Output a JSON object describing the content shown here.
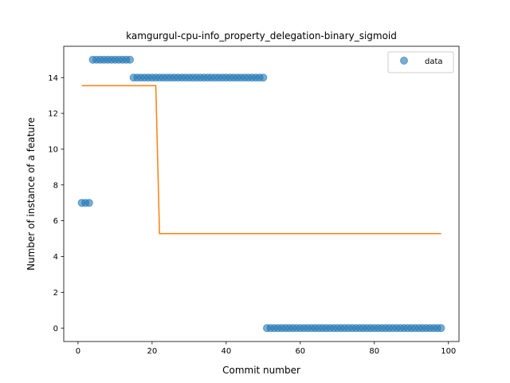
{
  "chart_data": {
    "type": "scatter",
    "title": "kamgurgul-cpu-info_property_delegation-binary_sigmoid",
    "xlabel": "Commit number",
    "ylabel": "Number of instance of a feature",
    "xlim": [
      -3.85,
      102.85
    ],
    "ylim": [
      -0.75,
      15.75
    ],
    "xticks": [
      0,
      20,
      40,
      60,
      80,
      100
    ],
    "yticks": [
      0,
      2,
      4,
      6,
      8,
      10,
      12,
      14
    ],
    "grid": false,
    "legend": {
      "position": "top-right",
      "entries": [
        "data"
      ]
    },
    "colors": {
      "data": "#1f77b4",
      "fit": "#ff7f0e"
    },
    "series": [
      {
        "name": "data",
        "kind": "scatter",
        "x": [
          1,
          2,
          3,
          4,
          5,
          6,
          7,
          8,
          9,
          10,
          11,
          12,
          13,
          14,
          15,
          16,
          17,
          18,
          19,
          20,
          21,
          22,
          23,
          24,
          25,
          26,
          27,
          28,
          29,
          30,
          31,
          32,
          33,
          34,
          35,
          36,
          37,
          38,
          39,
          40,
          41,
          42,
          43,
          44,
          45,
          46,
          47,
          48,
          49,
          50,
          51,
          52,
          53,
          54,
          55,
          56,
          57,
          58,
          59,
          60,
          61,
          62,
          63,
          64,
          65,
          66,
          67,
          68,
          69,
          70,
          71,
          72,
          73,
          74,
          75,
          76,
          77,
          78,
          79,
          80,
          81,
          82,
          83,
          84,
          85,
          86,
          87,
          88,
          89,
          90,
          91,
          92,
          93,
          94,
          95,
          96,
          97,
          98
        ],
        "y": [
          7,
          7,
          7,
          15,
          15,
          15,
          15,
          15,
          15,
          15,
          15,
          15,
          15,
          15,
          14,
          14,
          14,
          14,
          14,
          14,
          14,
          14,
          14,
          14,
          14,
          14,
          14,
          14,
          14,
          14,
          14,
          14,
          14,
          14,
          14,
          14,
          14,
          14,
          14,
          14,
          14,
          14,
          14,
          14,
          14,
          14,
          14,
          14,
          14,
          14,
          0,
          0,
          0,
          0,
          0,
          0,
          0,
          0,
          0,
          0,
          0,
          0,
          0,
          0,
          0,
          0,
          0,
          0,
          0,
          0,
          0,
          0,
          0,
          0,
          0,
          0,
          0,
          0,
          0,
          0,
          0,
          0,
          0,
          0,
          0,
          0,
          0,
          0,
          0,
          0,
          0,
          0,
          0,
          0,
          0,
          0,
          0,
          0
        ]
      },
      {
        "kind": "line",
        "x": [
          1,
          21,
          22,
          98
        ],
        "y": [
          13.55,
          13.55,
          5.28,
          5.28
        ]
      }
    ]
  }
}
